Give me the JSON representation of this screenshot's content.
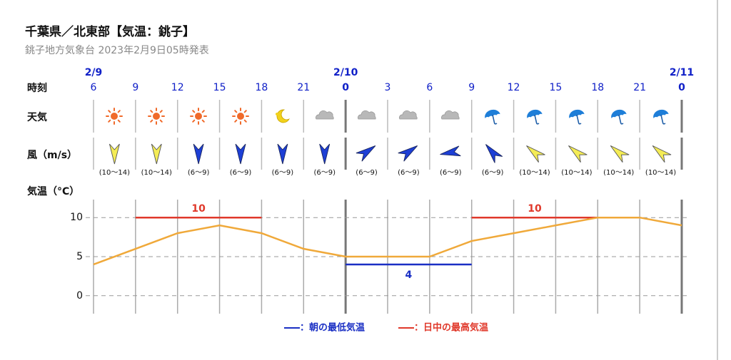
{
  "header": {
    "title": "千葉県／北東部【気温：銚子】",
    "subtitle": "銚子地方気象台 2023年2月9日05時発表"
  },
  "row_labels": {
    "time": "時刻",
    "weather": "天気",
    "wind": "風（m/s）",
    "temperature": "気温（°C）"
  },
  "wind_speeds": [
    "(10～14)",
    "(10～14)",
    "(6～9)",
    "(6～9)",
    "(6～9)",
    "(6～9)",
    "(6～9)",
    "(6～9)",
    "(6～9)",
    "(6～9)",
    "(10～14)",
    "(10～14)",
    "(10～14)",
    "(10～14)"
  ],
  "chart_data": {
    "type": "line",
    "categories": [
      "6",
      "9",
      "12",
      "15",
      "18",
      "21",
      "0",
      "3",
      "6",
      "9",
      "12",
      "15",
      "18",
      "21",
      "0"
    ],
    "dates": [
      "2/9",
      null,
      null,
      null,
      null,
      null,
      "2/10",
      null,
      null,
      null,
      null,
      null,
      null,
      null,
      "2/11"
    ],
    "values": [
      4,
      6,
      8,
      9,
      8,
      6,
      5,
      5,
      5,
      7,
      8,
      9,
      10,
      10,
      9
    ],
    "color": "#f0a93a",
    "ylim": [
      -2.3,
      12.3
    ],
    "yticks": [
      0,
      5,
      10
    ],
    "grid": true,
    "min_temp": {
      "name": "：朝の最低気温",
      "color": "#1a2fc4",
      "values": [
        null,
        null,
        null,
        null,
        null,
        null,
        4,
        4,
        4,
        4,
        null,
        null,
        null,
        null,
        null
      ]
    },
    "max_temp": {
      "name": "：日中の最高気温",
      "color": "#e0392b",
      "values": [
        null,
        10,
        10,
        10,
        10,
        null,
        null,
        null,
        null,
        10,
        10,
        10,
        10,
        null,
        null
      ]
    }
  }
}
